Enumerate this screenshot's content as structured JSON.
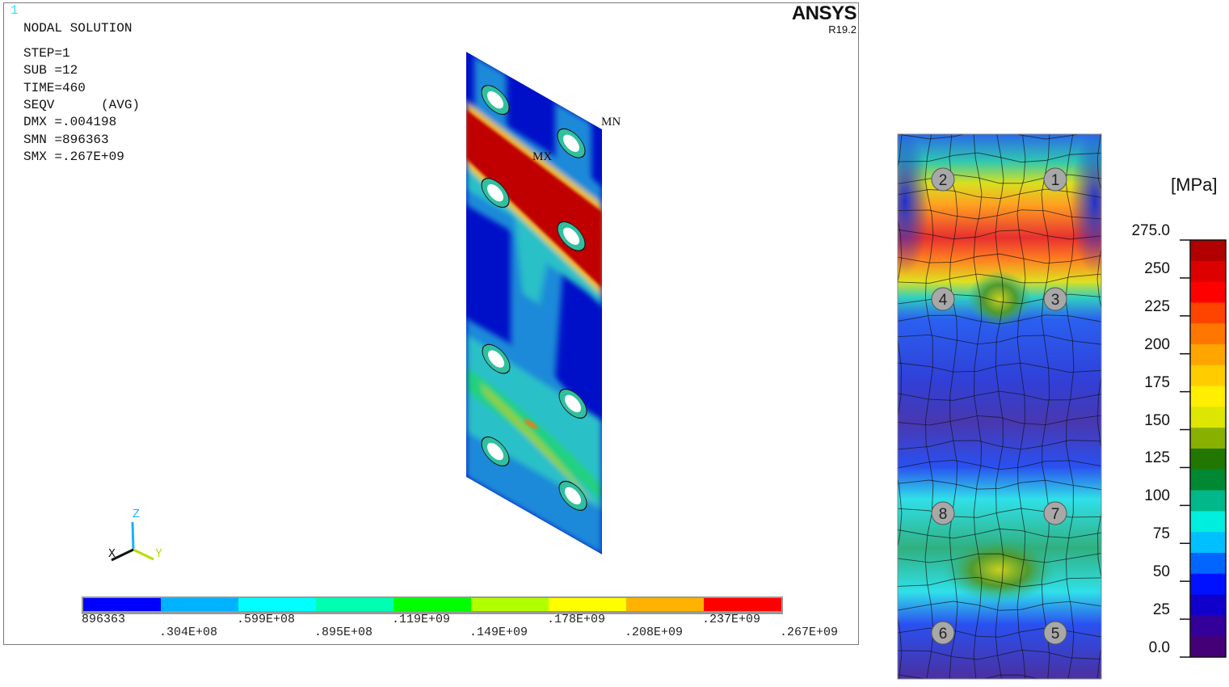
{
  "ansys": {
    "window_number": "1",
    "brand": "ANSYS",
    "version": "R19.2",
    "info_lines": [
      "NODAL SOLUTION",
      "STEP=1",
      "SUB =12",
      "TIME=460",
      "SEQV      (AVG)",
      "DMX =.004198",
      "SMN =896363",
      "SMX =.267E+09"
    ],
    "markers": {
      "max": "MX",
      "min": "MN"
    },
    "axes": {
      "x": "X",
      "y": "Y",
      "z": "Z"
    },
    "legend": {
      "colors": [
        "#0000ff",
        "#00b2ff",
        "#00ffff",
        "#00ffb2",
        "#00ff00",
        "#b2ff00",
        "#ffff00",
        "#ffb200",
        "#ff0000"
      ],
      "labels_top": [
        "896363",
        ".599E+08",
        ".119E+09",
        ".178E+09",
        ".237E+09"
      ],
      "labels_bottom": [
        ".304E+08",
        ".895E+08",
        ".149E+09",
        ".208E+09",
        ".267E+09"
      ]
    }
  },
  "contour": {
    "unit": "[MPa]",
    "ticks": [
      "275.0",
      "250",
      "225",
      "200",
      "175",
      "150",
      "125",
      "100",
      "75",
      "50",
      "25",
      "0.0"
    ],
    "range": [
      0,
      275
    ],
    "colors": [
      "#b00000",
      "#dd0000",
      "#ff0000",
      "#ff4400",
      "#ff7700",
      "#ffa500",
      "#ffcc00",
      "#ffee00",
      "#dde600",
      "#88b000",
      "#227700",
      "#008833",
      "#00b88a",
      "#00eedd",
      "#00c0ff",
      "#0066ff",
      "#0011ff",
      "#1100cc",
      "#330099",
      "#440077"
    ],
    "bolts": [
      "1",
      "2",
      "3",
      "4",
      "5",
      "6",
      "7",
      "8"
    ]
  }
}
